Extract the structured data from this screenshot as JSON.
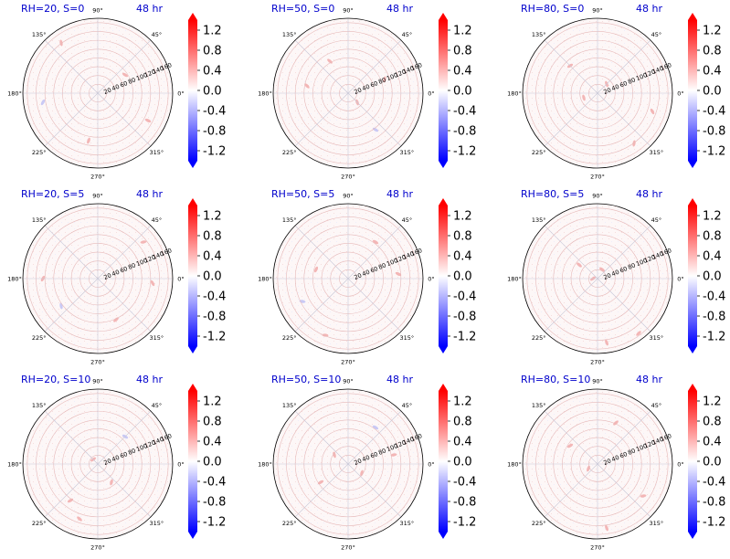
{
  "colors": {
    "title": "#0000cc",
    "cmap": [
      "#0000ff",
      "#ffffff",
      "#ff0000"
    ],
    "grid": "#e0b0b0",
    "rim": "#000000"
  },
  "chart_data": [
    {
      "type": "heatmap",
      "projection": "polar",
      "title_left": "RH=20, S=0",
      "title_right": "48 hr",
      "theta_ticks": [
        "90°",
        "45°",
        "0°",
        "315°",
        "270°",
        "225°",
        "180°",
        "135°"
      ],
      "r_ticks": [
        "20",
        "40",
        "60",
        "80",
        "100",
        "120",
        "140",
        "160"
      ],
      "colorbar": {
        "ticks": [
          "1.2",
          "0.8",
          "0.4",
          "0.0",
          "-0.4",
          "-0.8",
          "-1.2"
        ],
        "range": [
          -1.4,
          1.4
        ],
        "extend": "both",
        "cmap": "bwr"
      }
    },
    {
      "type": "heatmap",
      "projection": "polar",
      "title_left": "RH=50, S=0",
      "title_right": "48 hr",
      "theta_ticks": [
        "90°",
        "45°",
        "0°",
        "315°",
        "270°",
        "225°",
        "180°",
        "135°"
      ],
      "r_ticks": [
        "20",
        "40",
        "60",
        "80",
        "100",
        "120",
        "140",
        "160"
      ],
      "colorbar": {
        "ticks": [
          "1.2",
          "0.8",
          "0.4",
          "0.0",
          "-0.4",
          "-0.8",
          "-1.2"
        ],
        "range": [
          -1.4,
          1.4
        ],
        "extend": "both",
        "cmap": "bwr"
      }
    },
    {
      "type": "heatmap",
      "projection": "polar",
      "title_left": "RH=80, S=0",
      "title_right": "48 hr",
      "theta_ticks": [
        "90°",
        "45°",
        "0°",
        "315°",
        "270°",
        "225°",
        "180°",
        "135°"
      ],
      "r_ticks": [
        "20",
        "40",
        "60",
        "80",
        "100",
        "120",
        "140",
        "160"
      ],
      "colorbar": {
        "ticks": [
          "1.2",
          "0.8",
          "0.4",
          "0.0",
          "-0.4",
          "-0.8",
          "-1.2"
        ],
        "range": [
          -1.4,
          1.4
        ],
        "extend": "both",
        "cmap": "bwr"
      }
    },
    {
      "type": "heatmap",
      "projection": "polar",
      "title_left": "RH=20, S=5",
      "title_right": "48 hr",
      "theta_ticks": [
        "90°",
        "45°",
        "0°",
        "315°",
        "270°",
        "225°",
        "180°",
        "135°"
      ],
      "r_ticks": [
        "20",
        "40",
        "60",
        "80",
        "100",
        "120",
        "140",
        "160"
      ],
      "colorbar": {
        "ticks": [
          "1.2",
          "0.8",
          "0.4",
          "0.0",
          "-0.4",
          "-0.8",
          "-1.2"
        ],
        "range": [
          -1.4,
          1.4
        ],
        "extend": "both",
        "cmap": "bwr"
      }
    },
    {
      "type": "heatmap",
      "projection": "polar",
      "title_left": "RH=50, S=5",
      "title_right": "48 hr",
      "theta_ticks": [
        "90°",
        "45°",
        "0°",
        "315°",
        "270°",
        "225°",
        "180°",
        "135°"
      ],
      "r_ticks": [
        "20",
        "40",
        "60",
        "80",
        "100",
        "120",
        "140",
        "160"
      ],
      "colorbar": {
        "ticks": [
          "1.2",
          "0.8",
          "0.4",
          "0.0",
          "-0.4",
          "-0.8",
          "-1.2"
        ],
        "range": [
          -1.4,
          1.4
        ],
        "extend": "both",
        "cmap": "bwr"
      }
    },
    {
      "type": "heatmap",
      "projection": "polar",
      "title_left": "RH=80, S=5",
      "title_right": "48 hr",
      "theta_ticks": [
        "90°",
        "45°",
        "0°",
        "315°",
        "270°",
        "225°",
        "180°",
        "135°"
      ],
      "r_ticks": [
        "20",
        "40",
        "60",
        "80",
        "100",
        "120",
        "140",
        "160"
      ],
      "colorbar": {
        "ticks": [
          "1.2",
          "0.8",
          "0.4",
          "0.0",
          "-0.4",
          "-0.8",
          "-1.2"
        ],
        "range": [
          -1.4,
          1.4
        ],
        "extend": "both",
        "cmap": "bwr"
      }
    },
    {
      "type": "heatmap",
      "projection": "polar",
      "title_left": "RH=20, S=10",
      "title_right": "48 hr",
      "theta_ticks": [
        "90°",
        "45°",
        "0°",
        "315°",
        "270°",
        "225°",
        "180°",
        "135°"
      ],
      "r_ticks": [
        "20",
        "40",
        "60",
        "80",
        "100",
        "120",
        "140",
        "160"
      ],
      "colorbar": {
        "ticks": [
          "1.2",
          "0.8",
          "0.4",
          "0.0",
          "-0.4",
          "-0.8",
          "-1.2"
        ],
        "range": [
          -1.4,
          1.4
        ],
        "extend": "both",
        "cmap": "bwr"
      }
    },
    {
      "type": "heatmap",
      "projection": "polar",
      "title_left": "RH=50, S=10",
      "title_right": "48 hr",
      "theta_ticks": [
        "90°",
        "45°",
        "0°",
        "315°",
        "270°",
        "225°",
        "180°",
        "135°"
      ],
      "r_ticks": [
        "20",
        "40",
        "60",
        "80",
        "100",
        "120",
        "140",
        "160"
      ],
      "colorbar": {
        "ticks": [
          "1.2",
          "0.8",
          "0.4",
          "0.0",
          "-0.4",
          "-0.8",
          "-1.2"
        ],
        "range": [
          -1.4,
          1.4
        ],
        "extend": "both",
        "cmap": "bwr"
      }
    },
    {
      "type": "heatmap",
      "projection": "polar",
      "title_left": "RH=80, S=10",
      "title_right": "48 hr",
      "theta_ticks": [
        "90°",
        "45°",
        "0°",
        "315°",
        "270°",
        "225°",
        "180°",
        "135°"
      ],
      "r_ticks": [
        "20",
        "40",
        "60",
        "80",
        "100",
        "120",
        "140",
        "160"
      ],
      "colorbar": {
        "ticks": [
          "1.2",
          "0.8",
          "0.4",
          "0.0",
          "-0.4",
          "-0.8",
          "-1.2"
        ],
        "range": [
          -1.4,
          1.4
        ],
        "extend": "both",
        "cmap": "bwr"
      }
    }
  ]
}
